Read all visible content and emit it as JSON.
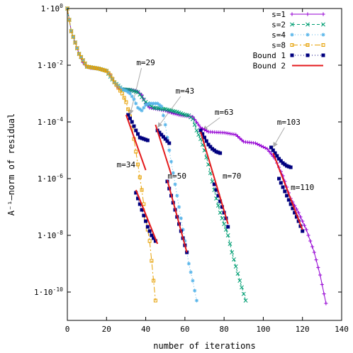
{
  "chart_data": {
    "type": "line",
    "title": "",
    "xlabel": "number of iterations",
    "ylabel": "A⁻¹–norm of residual",
    "xlim": [
      0,
      140
    ],
    "ylim_log10": [
      -11,
      0
    ],
    "y_scale": "log",
    "grid": false,
    "legend_position": "top-right",
    "x_ticks": [
      0,
      20,
      40,
      60,
      80,
      100,
      120,
      140
    ],
    "y_ticks": [
      {
        "exp": 0,
        "label_base": "1·10",
        "label_exp": "0"
      },
      {
        "exp": -2,
        "label_base": "1·10",
        "label_exp": "-2"
      },
      {
        "exp": -4,
        "label_base": "1·10",
        "label_exp": "-4"
      },
      {
        "exp": -6,
        "label_base": "1·10",
        "label_exp": "-6"
      },
      {
        "exp": -8,
        "label_base": "1·10",
        "label_exp": "-8"
      },
      {
        "exp": -10,
        "label_base": "1·10",
        "label_exp": "-10"
      }
    ],
    "series": [
      {
        "name": "s=1",
        "color": "#9400d3",
        "dash": "",
        "marker": "plus",
        "points_log10": [
          [
            0,
            0
          ],
          [
            1,
            -0.4
          ],
          [
            2,
            -0.8
          ],
          [
            4,
            -1.2
          ],
          [
            6,
            -1.6
          ],
          [
            8,
            -1.9
          ],
          [
            10,
            -2.05
          ],
          [
            12,
            -2.1
          ],
          [
            16,
            -2.12
          ],
          [
            20,
            -2.2
          ],
          [
            22,
            -2.35
          ],
          [
            24,
            -2.6
          ],
          [
            26,
            -2.8
          ],
          [
            28,
            -2.85
          ],
          [
            32,
            -2.87
          ],
          [
            35,
            -2.9
          ],
          [
            38,
            -3.05
          ],
          [
            40,
            -3.35
          ],
          [
            42,
            -3.5
          ],
          [
            46,
            -3.55
          ],
          [
            50,
            -3.6
          ],
          [
            54,
            -3.7
          ],
          [
            58,
            -3.77
          ],
          [
            64,
            -3.82
          ],
          [
            68,
            -4.2
          ],
          [
            72,
            -4.35
          ],
          [
            80,
            -4.38
          ],
          [
            86,
            -4.45
          ],
          [
            90,
            -4.7
          ],
          [
            96,
            -4.75
          ],
          [
            102,
            -4.95
          ],
          [
            106,
            -5.3
          ],
          [
            110,
            -5.9
          ],
          [
            114,
            -6.7
          ],
          [
            118,
            -7.2
          ],
          [
            122,
            -7.8
          ],
          [
            126,
            -8.6
          ],
          [
            129,
            -9.4
          ],
          [
            132,
            -10.4
          ]
        ]
      },
      {
        "name": "s=2",
        "color": "#009e73",
        "dash": "4,3",
        "marker": "x",
        "points_log10": [
          [
            0,
            0
          ],
          [
            2,
            -0.8
          ],
          [
            6,
            -1.6
          ],
          [
            10,
            -2.05
          ],
          [
            16,
            -2.12
          ],
          [
            20,
            -2.2
          ],
          [
            24,
            -2.6
          ],
          [
            28,
            -2.85
          ],
          [
            32,
            -2.87
          ],
          [
            36,
            -2.95
          ],
          [
            40,
            -3.3
          ],
          [
            44,
            -3.5
          ],
          [
            50,
            -3.55
          ],
          [
            56,
            -3.65
          ],
          [
            60,
            -3.75
          ],
          [
            62,
            -3.77
          ],
          [
            64,
            -3.9
          ],
          [
            66,
            -4.3
          ],
          [
            68,
            -4.6
          ],
          [
            70,
            -5.0
          ],
          [
            72,
            -5.5
          ],
          [
            74,
            -6.1
          ],
          [
            76,
            -6.7
          ],
          [
            78,
            -7.2
          ],
          [
            80,
            -7.6
          ],
          [
            82,
            -8.0
          ],
          [
            84,
            -8.6
          ],
          [
            86,
            -9.1
          ],
          [
            88,
            -9.6
          ],
          [
            91,
            -10.3
          ]
        ]
      },
      {
        "name": "s=4",
        "color": "#56b4e9",
        "dash": "1,3",
        "marker": "star",
        "points_log10": [
          [
            0,
            0
          ],
          [
            2,
            -0.8
          ],
          [
            6,
            -1.6
          ],
          [
            10,
            -2.05
          ],
          [
            16,
            -2.12
          ],
          [
            20,
            -2.2
          ],
          [
            24,
            -2.6
          ],
          [
            28,
            -2.85
          ],
          [
            30,
            -2.9
          ],
          [
            32,
            -3.0
          ],
          [
            34,
            -3.2
          ],
          [
            36,
            -3.5
          ],
          [
            38,
            -3.6
          ],
          [
            40,
            -3.4
          ],
          [
            42,
            -3.35
          ],
          [
            46,
            -3.35
          ],
          [
            48,
            -3.45
          ],
          [
            50,
            -4.1
          ],
          [
            52,
            -5.0
          ],
          [
            54,
            -5.8
          ],
          [
            56,
            -6.6
          ],
          [
            58,
            -7.4
          ],
          [
            60,
            -8.2
          ],
          [
            62,
            -9.0
          ],
          [
            64,
            -9.6
          ],
          [
            66,
            -10.3
          ]
        ]
      },
      {
        "name": "s=8",
        "color": "#e69f00",
        "dash": "8,3,2,3",
        "marker": "square",
        "points_log10": [
          [
            0,
            0
          ],
          [
            2,
            -0.8
          ],
          [
            6,
            -1.6
          ],
          [
            10,
            -2.05
          ],
          [
            16,
            -2.12
          ],
          [
            20,
            -2.2
          ],
          [
            22,
            -2.35
          ],
          [
            24,
            -2.6
          ],
          [
            26,
            -2.8
          ],
          [
            28,
            -3.0
          ],
          [
            30,
            -3.3
          ],
          [
            32,
            -3.8
          ],
          [
            34,
            -4.6
          ],
          [
            36,
            -5.5
          ],
          [
            38,
            -6.4
          ],
          [
            40,
            -7.4
          ],
          [
            42,
            -8.2
          ],
          [
            43,
            -8.9
          ],
          [
            44,
            -9.6
          ],
          [
            45,
            -10.3
          ]
        ]
      }
    ],
    "bound1_segments": [
      {
        "points_log10": [
          [
            31,
            -3.75
          ],
          [
            33,
            -4.0
          ],
          [
            35,
            -4.3
          ],
          [
            37,
            -4.55
          ],
          [
            39,
            -4.6
          ],
          [
            41,
            -4.65
          ]
        ]
      },
      {
        "points_log10": [
          [
            46,
            -4.3
          ],
          [
            48,
            -4.45
          ],
          [
            50,
            -4.6
          ],
          [
            52,
            -4.75
          ]
        ]
      },
      {
        "points_log10": [
          [
            68,
            -4.3
          ],
          [
            70,
            -4.55
          ],
          [
            72,
            -4.8
          ],
          [
            74,
            -4.95
          ],
          [
            76,
            -5.05
          ],
          [
            78,
            -5.1
          ]
        ]
      },
      {
        "points_log10": [
          [
            104,
            -4.9
          ],
          [
            106,
            -5.1
          ],
          [
            108,
            -5.3
          ],
          [
            110,
            -5.45
          ],
          [
            112,
            -5.55
          ],
          [
            114,
            -5.6
          ]
        ]
      },
      {
        "points_log10": [
          [
            35,
            -6.5
          ],
          [
            37,
            -6.9
          ],
          [
            39,
            -7.3
          ],
          [
            41,
            -7.7
          ],
          [
            43,
            -8.0
          ],
          [
            45,
            -8.2
          ]
        ]
      },
      {
        "points_log10": [
          [
            51,
            -6.1
          ],
          [
            53,
            -6.6
          ],
          [
            55,
            -7.1
          ],
          [
            57,
            -7.6
          ],
          [
            59,
            -8.1
          ],
          [
            61,
            -8.6
          ]
        ]
      },
      {
        "points_log10": [
          [
            75,
            -6.2
          ],
          [
            77,
            -6.6
          ],
          [
            79,
            -7.0
          ],
          [
            81,
            -7.4
          ],
          [
            82,
            -7.7
          ]
        ]
      },
      {
        "points_log10": [
          [
            108,
            -6.0
          ],
          [
            110,
            -6.3
          ],
          [
            112,
            -6.6
          ],
          [
            114,
            -6.9
          ],
          [
            116,
            -7.2
          ],
          [
            118,
            -7.5
          ],
          [
            120,
            -7.85
          ]
        ]
      }
    ],
    "bound2_segments": [
      {
        "points_log10": [
          [
            30,
            -3.75
          ],
          [
            40,
            -5.7
          ]
        ]
      },
      {
        "points_log10": [
          [
            45,
            -4.1
          ],
          [
            53,
            -5.85
          ]
        ]
      },
      {
        "points_log10": [
          [
            68,
            -4.35
          ],
          [
            82,
            -7.6
          ]
        ]
      },
      {
        "points_log10": [
          [
            105,
            -5.1
          ],
          [
            120,
            -7.8
          ]
        ]
      },
      {
        "points_log10": [
          [
            35,
            -6.4
          ],
          [
            46,
            -8.3
          ]
        ]
      },
      {
        "points_log10": [
          [
            51,
            -6.05
          ],
          [
            61,
            -8.6
          ]
        ]
      }
    ],
    "bound1": {
      "name": "Bound 1",
      "color": "#00007f",
      "dash": "1,3",
      "marker": "square"
    },
    "bound2": {
      "name": "Bound 2",
      "color": "#e41a1c",
      "dash": ""
    },
    "annotations": [
      {
        "text": "m=29",
        "x": 40,
        "y_log10": -2.0,
        "arrow_to": [
          32,
          -3.75
        ]
      },
      {
        "text": "m=43",
        "x": 60,
        "y_log10": -3.0,
        "arrow_to": [
          46,
          -4.2
        ]
      },
      {
        "text": "m=63",
        "x": 80,
        "y_log10": -3.75,
        "arrow_to": [
          69,
          -4.3
        ]
      },
      {
        "text": "m=103",
        "x": 113,
        "y_log10": -4.1,
        "arrow_to": [
          105,
          -4.9
        ]
      },
      {
        "text": "m=34",
        "x": 30,
        "y_log10": -5.6,
        "arrow_to": null
      },
      {
        "text": "m=50",
        "x": 56,
        "y_log10": -6.0,
        "arrow_to": null
      },
      {
        "text": "m=70",
        "x": 84,
        "y_log10": -6.0,
        "arrow_to": null
      },
      {
        "text": "m=110",
        "x": 120,
        "y_log10": -6.4,
        "arrow_to": null
      }
    ]
  }
}
